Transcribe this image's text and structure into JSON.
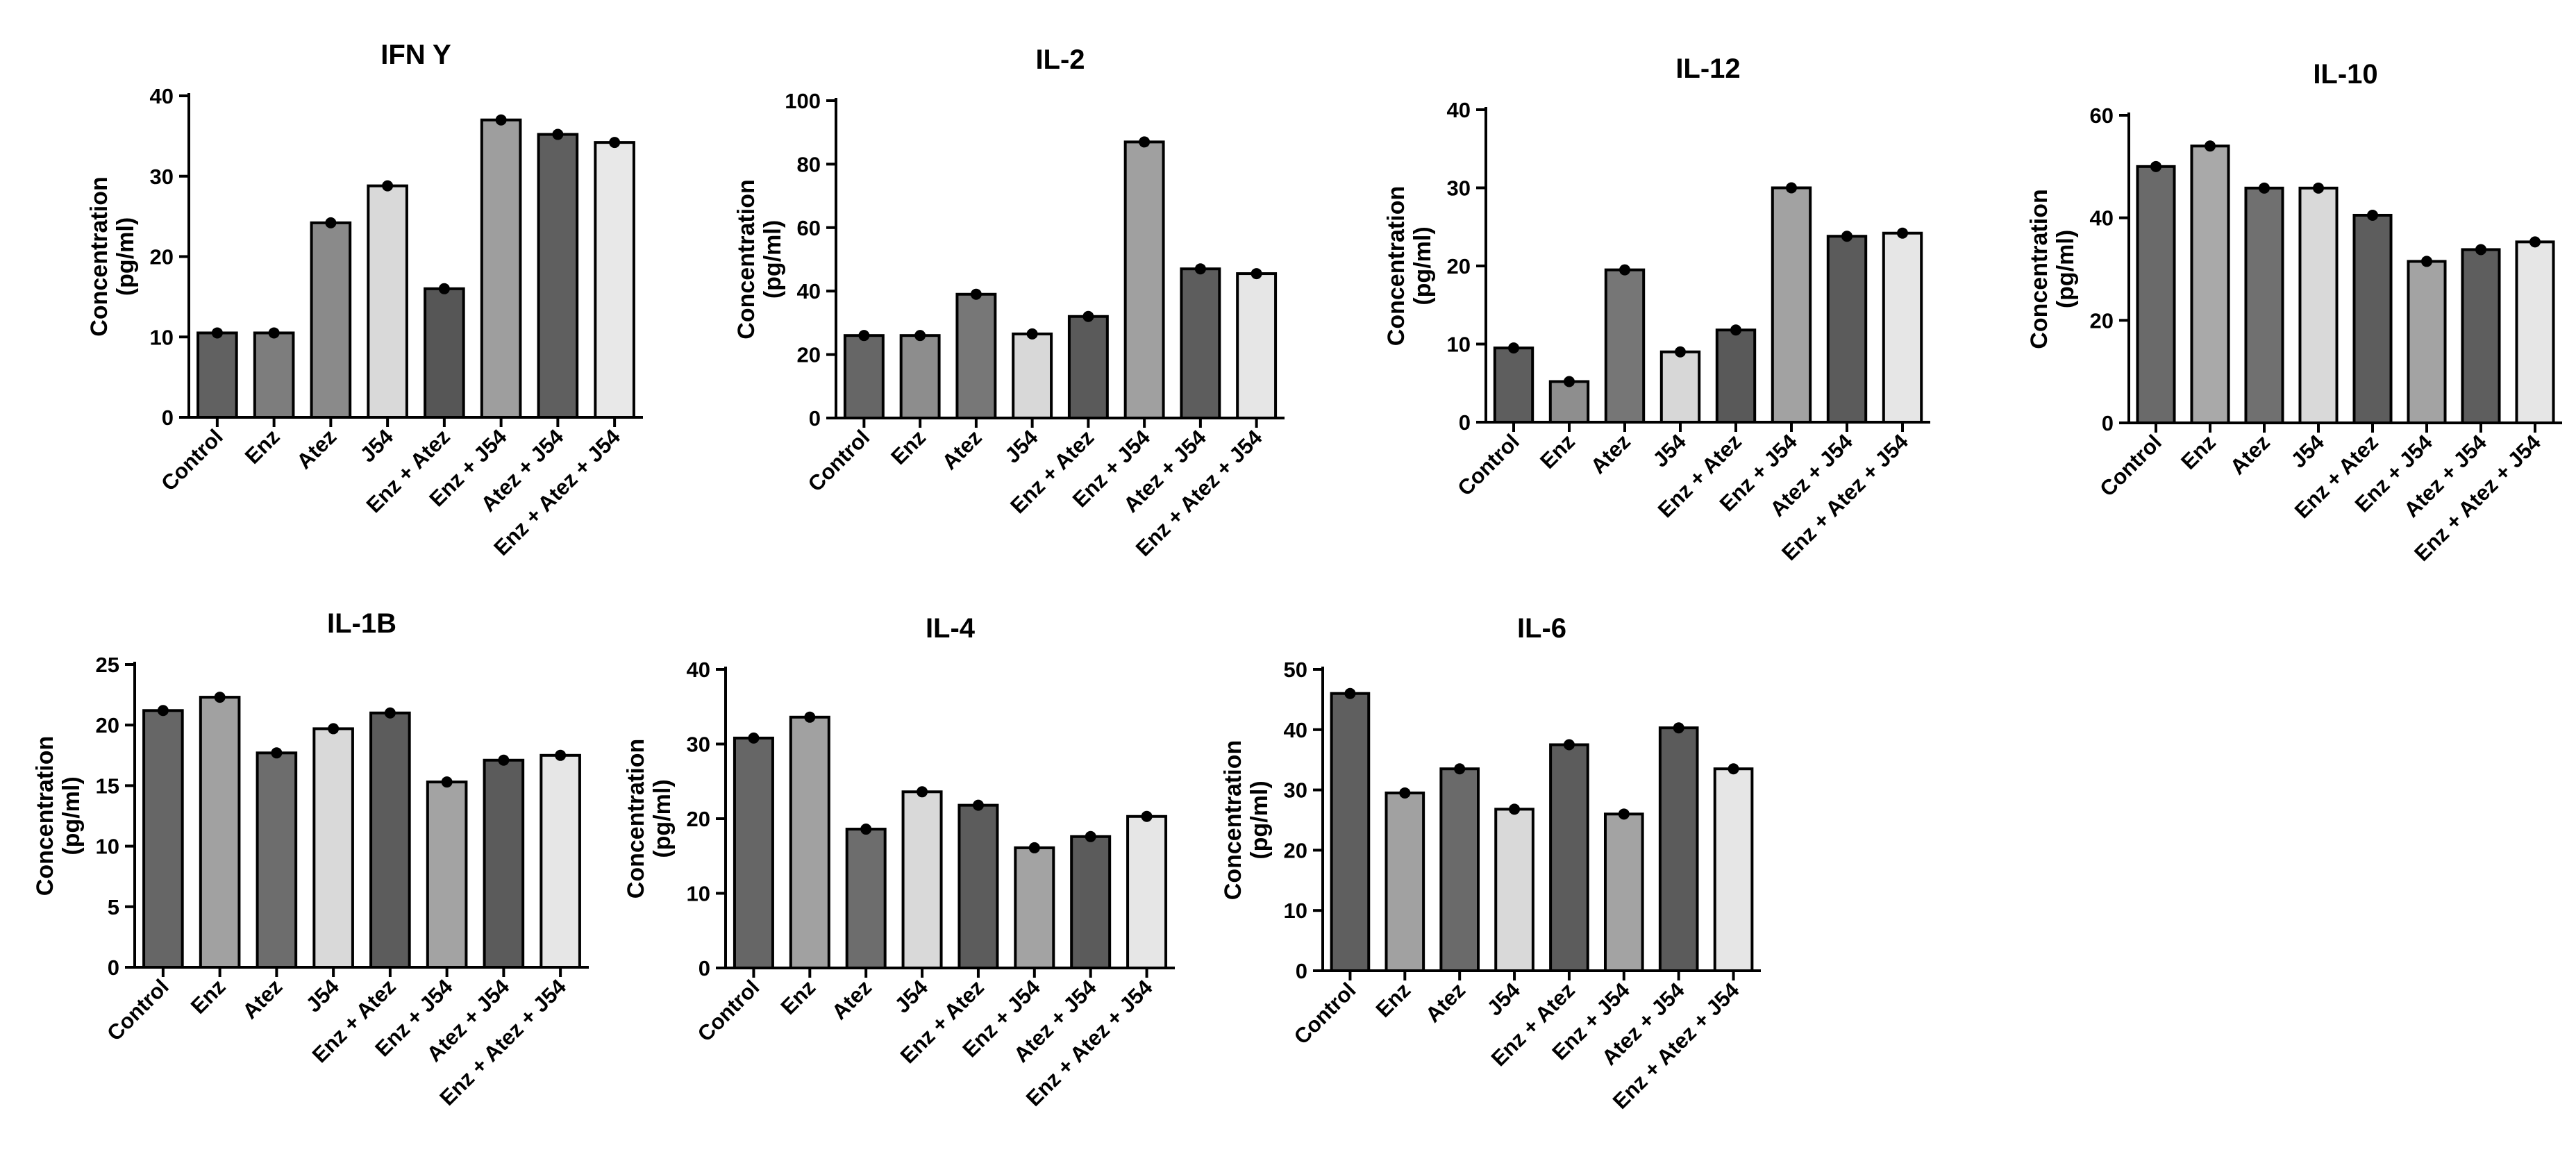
{
  "chart_data": [
    {
      "type": "bar",
      "title": "IFN Y",
      "ylabel": "Concentration\n(pg/ml)",
      "xlabel": "",
      "categories": [
        "Control",
        "Enz",
        "Atez",
        "J54",
        "Enz + Atez",
        "Enz + J54",
        "Atez + J54",
        "Enz + Atez + J54"
      ],
      "values": [
        10.5,
        10.5,
        24.2,
        28.8,
        16.0,
        37.0,
        35.2,
        34.2
      ],
      "ylim": [
        0,
        40
      ],
      "yticks": [
        0,
        10,
        20,
        30,
        40
      ],
      "grid": false,
      "bar_colors": [
        "#616161",
        "#7d7d7d",
        "#8a8a8a",
        "#d9d9d9",
        "#565656",
        "#9e9e9e",
        "#5f5f5f",
        "#e8e8e8"
      ]
    },
    {
      "type": "bar",
      "title": "IL-2",
      "ylabel": "Concentration\n(pg/ml)",
      "xlabel": "",
      "categories": [
        "Control",
        "Enz",
        "Atez",
        "J54",
        "Enz + Atez",
        "Enz + J54",
        "Atez + J54",
        "Enz + Atez + J54"
      ],
      "values": [
        26,
        26,
        39,
        26.5,
        32,
        87,
        47,
        45.5
      ],
      "ylim": [
        0,
        100
      ],
      "yticks": [
        0,
        20,
        40,
        60,
        80,
        100
      ],
      "grid": false,
      "bar_colors": [
        "#666666",
        "#8d8d8d",
        "#777777",
        "#d8d8d8",
        "#5a5a5a",
        "#a0a0a0",
        "#5d5d5d",
        "#e6e6e6"
      ]
    },
    {
      "type": "bar",
      "title": "IL-12",
      "ylabel": "Concentration\n(pg/ml)",
      "xlabel": "",
      "categories": [
        "Control",
        "Enz",
        "Atez",
        "J54",
        "Enz + Atez",
        "Enz + J54",
        "Atez + J54",
        "Enz + Atez + J54"
      ],
      "values": [
        9.5,
        5.2,
        19.5,
        9.0,
        11.8,
        30.0,
        23.8,
        24.2
      ],
      "ylim": [
        0,
        40
      ],
      "yticks": [
        0,
        10,
        20,
        30,
        40
      ],
      "grid": false,
      "bar_colors": [
        "#5e5e5e",
        "#8e8e8e",
        "#767676",
        "#d7d7d7",
        "#595959",
        "#a2a2a2",
        "#5b5b5b",
        "#e6e6e6"
      ]
    },
    {
      "type": "bar",
      "title": "IL-10",
      "ylabel": "Concentration\n(pg/ml)",
      "xlabel": "",
      "categories": [
        "Control",
        "Enz",
        "Atez",
        "J54",
        "Enz + Atez",
        "Enz + J54",
        "Atez + J54",
        "Enz + Atez + J54"
      ],
      "values": [
        50,
        54,
        45.8,
        45.8,
        40.5,
        31.5,
        33.8,
        35.3
      ],
      "ylim": [
        0,
        60
      ],
      "yticks": [
        0,
        20,
        40,
        60
      ],
      "grid": false,
      "bar_colors": [
        "#6a6a6a",
        "#a9a9a9",
        "#707070",
        "#d9d9d9",
        "#5d5d5d",
        "#a3a3a3",
        "#5e5e5e",
        "#e6e6e6"
      ]
    },
    {
      "type": "bar",
      "title": "IL-1B",
      "ylabel": "Concentration\n(pg/ml)",
      "xlabel": "",
      "categories": [
        "Control",
        "Enz",
        "Atez",
        "J54",
        "Enz + Atez",
        "Enz + J54",
        "Atez + J54",
        "Enz + Atez + J54"
      ],
      "values": [
        21.2,
        22.3,
        17.7,
        19.7,
        21.0,
        15.3,
        17.1,
        17.5
      ],
      "ylim": [
        0,
        25
      ],
      "yticks": [
        0,
        5,
        10,
        15,
        20,
        25
      ],
      "grid": false,
      "bar_colors": [
        "#666666",
        "#a1a1a1",
        "#6d6d6d",
        "#d9d9d9",
        "#5c5c5c",
        "#a3a3a3",
        "#5b5b5b",
        "#e6e6e6"
      ]
    },
    {
      "type": "bar",
      "title": "IL-4",
      "ylabel": "Concentration\n(pg/ml)",
      "xlabel": "",
      "categories": [
        "Control",
        "Enz",
        "Atez",
        "J54",
        "Enz + Atez",
        "Enz + J54",
        "Atez + J54",
        "Enz + Atez + J54"
      ],
      "values": [
        30.8,
        33.6,
        18.6,
        23.6,
        21.8,
        16.1,
        17.6,
        20.3
      ],
      "ylim": [
        0,
        40
      ],
      "yticks": [
        0,
        10,
        20,
        30,
        40
      ],
      "grid": false,
      "bar_colors": [
        "#666666",
        "#a1a1a1",
        "#6d6d6d",
        "#d9d9d9",
        "#5c5c5c",
        "#a3a3a3",
        "#5b5b5b",
        "#e6e6e6"
      ]
    },
    {
      "type": "bar",
      "title": "IL-6",
      "ylabel": "Concentration\n(pg/ml)",
      "xlabel": "",
      "categories": [
        "Control",
        "Enz",
        "Atez",
        "J54",
        "Enz + Atez",
        "Enz + J54",
        "Atez + J54",
        "Enz + Atez + J54"
      ],
      "values": [
        46.0,
        29.5,
        33.5,
        26.8,
        37.5,
        26.0,
        40.3,
        33.5
      ],
      "ylim": [
        0,
        50
      ],
      "yticks": [
        0,
        10,
        20,
        30,
        40,
        50
      ],
      "grid": false,
      "bar_colors": [
        "#5f5f5f",
        "#a1a1a1",
        "#6a6a6a",
        "#d9d9d9",
        "#5c5c5c",
        "#a3a3a3",
        "#5b5b5b",
        "#e6e6e6"
      ]
    }
  ]
}
